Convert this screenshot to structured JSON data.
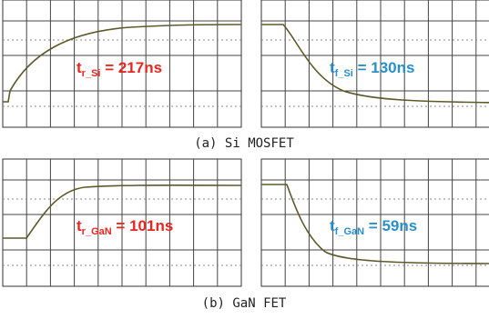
{
  "panels": [
    {
      "label": {
        "symbol": "t",
        "sub": "r_Si",
        "rest": " = 217ns"
      }
    },
    {
      "label": {
        "symbol": "t",
        "sub": "f_Si",
        "rest": " = 130ns"
      }
    },
    {
      "label": {
        "symbol": "t",
        "sub": "r_GaN",
        "rest": " = 101ns"
      }
    },
    {
      "label": {
        "symbol": "t",
        "sub": "f_GaN",
        "rest": " = 59ns"
      }
    }
  ],
  "captions": [
    "(a) Si MOSFET",
    "(b) GaN FET"
  ]
}
